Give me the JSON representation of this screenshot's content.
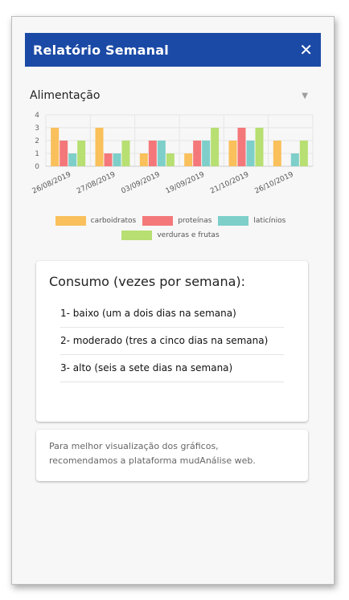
{
  "header": {
    "title": "Relatório Semanal",
    "close_icon": "close-icon",
    "background": "#1b4aa6"
  },
  "dropdown": {
    "value": "Alimentação",
    "icon": "caret-down-icon"
  },
  "chart_data": {
    "type": "bar",
    "categories": [
      "26/08/2019",
      "27/08/2019",
      "03/09/2019",
      "19/09/2019",
      "21/10/2019",
      "26/10/2019"
    ],
    "series": [
      {
        "name": "carboidratos",
        "color": "#f9c05b",
        "values": [
          3,
          3,
          1,
          1,
          2,
          2
        ]
      },
      {
        "name": "proteínas",
        "color": "#f4787a",
        "values": [
          2,
          1,
          2,
          2,
          3,
          0
        ]
      },
      {
        "name": "laticínios",
        "color": "#7ecfc9",
        "values": [
          1,
          1,
          2,
          2,
          2,
          1
        ]
      },
      {
        "name": "verduras e frutas",
        "color": "#b7df72",
        "values": [
          2,
          2,
          1,
          3,
          3,
          2
        ]
      }
    ],
    "yticks": [
      0,
      1,
      2,
      3,
      4
    ],
    "ylim": [
      0,
      4
    ],
    "grid": true,
    "legend": "bottom"
  },
  "card": {
    "title": "Consumo (vezes por semana):",
    "items": [
      "1- baixo (um a dois dias na semana)",
      "2- moderado (tres a cinco dias na semana)",
      "3- alto (seis a sete dias na semana)"
    ]
  },
  "note": {
    "line1": "Para melhor visualização dos gráficos,",
    "line2": "recomendamos a plataforma mudAnálise web."
  }
}
